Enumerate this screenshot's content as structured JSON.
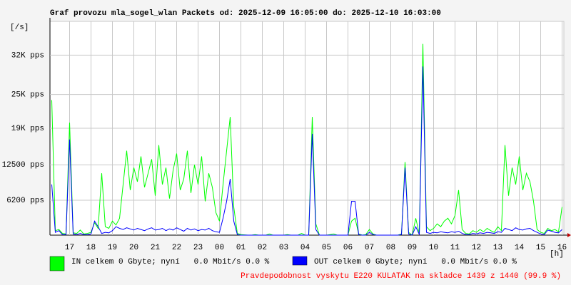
{
  "chart_data": {
    "type": "line",
    "title": "Graf provozu mla_sogel_wlan Packets od: 2025-12-09 16:05:00 do: 2025-12-10 16:03:00",
    "y_unit": "[/s]",
    "x_unit": "[h]",
    "hours": [
      "17",
      "18",
      "19",
      "20",
      "21",
      "22",
      "23",
      "00",
      "01",
      "02",
      "03",
      "04",
      "05",
      "06",
      "07",
      "08",
      "09",
      "10",
      "11",
      "12",
      "13",
      "14",
      "15",
      "16"
    ],
    "ylim": [
      0,
      38000
    ],
    "yticks": [
      {
        "value": 6200,
        "label": "6200 pps"
      },
      {
        "value": 12500,
        "label": "12500 pps"
      },
      {
        "value": 19000,
        "label": "19K pps"
      },
      {
        "value": 25000,
        "label": "25K pps"
      },
      {
        "value": 32000,
        "label": "32K pps"
      }
    ],
    "grid": true,
    "series": [
      {
        "name": "IN celkem 0 Gbyte; nyní   0.0 Mbit/s 0.0 %",
        "color": "#00ff00",
        "values": [
          24000,
          800,
          1000,
          300,
          200,
          20000,
          400,
          300,
          900,
          200,
          300,
          500,
          2200,
          1200,
          11000,
          1500,
          1200,
          2500,
          1800,
          3000,
          9000,
          15000,
          8000,
          12000,
          9500,
          14000,
          8500,
          11000,
          13500,
          7000,
          16000,
          9000,
          12000,
          6500,
          11500,
          14500,
          8000,
          10000,
          15000,
          7500,
          12500,
          9000,
          14000,
          6000,
          11000,
          8500,
          4000,
          2500,
          9000,
          15000,
          21000,
          5000,
          300,
          100,
          50,
          0,
          0,
          100,
          0,
          0,
          0,
          200,
          0,
          0,
          0,
          0,
          100,
          0,
          0,
          0,
          300,
          0,
          0,
          21000,
          2000,
          0,
          0,
          0,
          100,
          200,
          0,
          0,
          0,
          0,
          2500,
          3000,
          200,
          0,
          100,
          1000,
          200,
          0,
          0,
          0,
          0,
          0,
          0,
          0,
          200,
          13000,
          500,
          0,
          3000,
          200,
          34000,
          1500,
          800,
          1200,
          2000,
          1500,
          2500,
          3000,
          2000,
          3500,
          8000,
          1000,
          300,
          200,
          800,
          500,
          1000,
          600,
          1200,
          800,
          500,
          1500,
          800,
          16000,
          7000,
          12000,
          9000,
          14000,
          8000,
          11000,
          9500,
          6000,
          1000,
          500,
          300,
          1200,
          800,
          1000,
          600,
          5000
        ]
      },
      {
        "name": "OUT celkem 0 Gbyte; nyní   0.0 Mbit/s 0.0 %",
        "color": "#0000ff",
        "values": [
          9000,
          500,
          800,
          100,
          100,
          17000,
          200,
          100,
          300,
          100,
          100,
          200,
          2500,
          1500,
          300,
          500,
          400,
          800,
          1500,
          1200,
          1000,
          1300,
          1100,
          900,
          1200,
          1000,
          800,
          1100,
          1300,
          900,
          1000,
          1200,
          800,
          1100,
          900,
          1300,
          1000,
          700,
          1200,
          900,
          1100,
          800,
          1000,
          900,
          1200,
          800,
          600,
          500,
          3000,
          6000,
          10000,
          2500,
          100,
          0,
          0,
          0,
          0,
          0,
          0,
          0,
          0,
          0,
          0,
          0,
          0,
          0,
          0,
          0,
          0,
          0,
          0,
          0,
          0,
          18000,
          1000,
          0,
          0,
          0,
          0,
          0,
          0,
          0,
          0,
          0,
          6000,
          6000,
          100,
          0,
          0,
          500,
          100,
          0,
          0,
          0,
          0,
          0,
          0,
          0,
          100,
          12000,
          200,
          0,
          1500,
          100,
          30000,
          500,
          300,
          500,
          400,
          600,
          500,
          400,
          600,
          500,
          700,
          300,
          100,
          100,
          300,
          200,
          400,
          300,
          500,
          400,
          300,
          600,
          500,
          1200,
          1000,
          800,
          1300,
          1000,
          900,
          1100,
          1200,
          800,
          500,
          200,
          100,
          900,
          700,
          500,
          400,
          1000
        ]
      }
    ],
    "footnote": "Pravdepodobnost vyskytu E220 KULATAK na skladce 1439 z 1440 (99.9 %)",
    "footnote_color": "#ff0000"
  }
}
